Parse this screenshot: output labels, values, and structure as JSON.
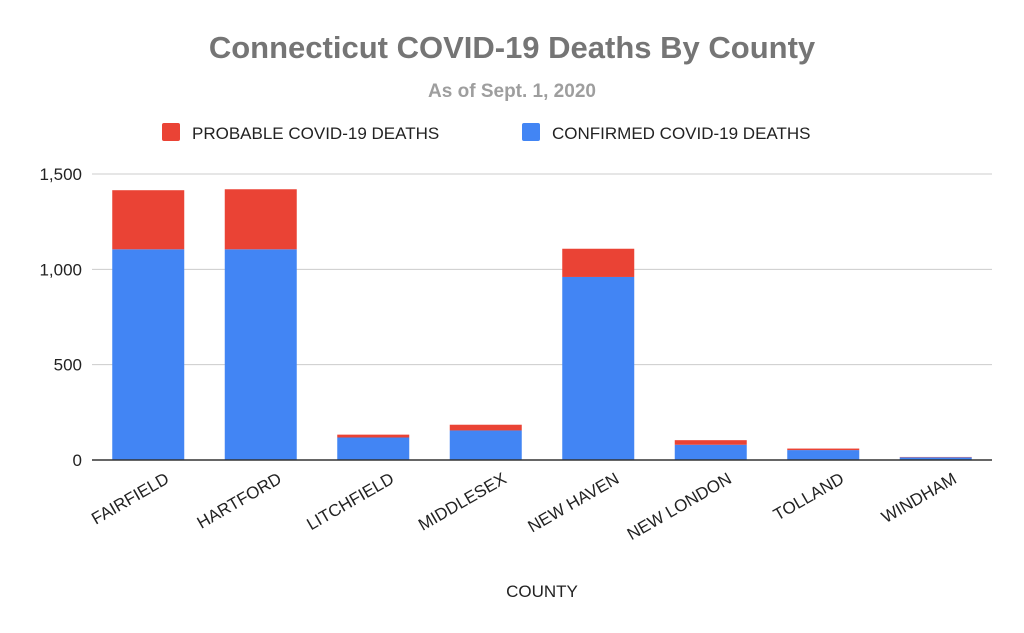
{
  "chart_data": {
    "type": "bar",
    "stacked": true,
    "title": "Connecticut COVID-19 Deaths By County",
    "subtitle": "As of Sept. 1, 2020",
    "xlabel": "COUNTY",
    "ylabel": "",
    "ylim": [
      0,
      1500
    ],
    "yticks": [
      0,
      500,
      1000,
      1500
    ],
    "ytick_labels": [
      "0",
      "500",
      "1,000",
      "1,500"
    ],
    "grid": true,
    "legend_position": "top",
    "categories": [
      "FAIRFIELD",
      "HARTFORD",
      "LITCHFIELD",
      "MIDDLESEX",
      "NEW HAVEN",
      "NEW LONDON",
      "TOLLAND",
      "WINDHAM"
    ],
    "series": [
      {
        "name": "CONFIRMED COVID-19 DEATHS",
        "color": "#4285f4",
        "values": [
          1105,
          1105,
          118,
          155,
          960,
          80,
          52,
          14
        ]
      },
      {
        "name": "PROBABLE COVID-19 DEATHS",
        "color": "#ea4335",
        "values": [
          310,
          315,
          15,
          30,
          148,
          24,
          8,
          2
        ]
      }
    ],
    "legend_order": [
      "PROBABLE COVID-19 DEATHS",
      "CONFIRMED COVID-19 DEATHS"
    ]
  }
}
